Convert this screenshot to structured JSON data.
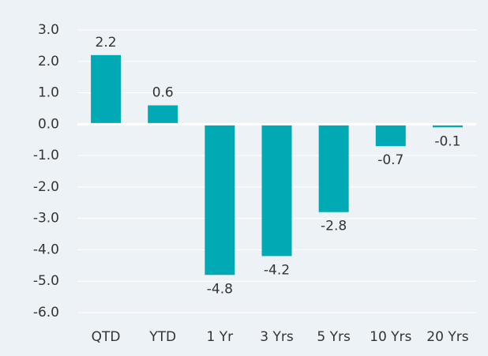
{
  "chart_data": {
    "type": "bar",
    "categories": [
      "QTD",
      "YTD",
      "1 Yr",
      "3 Yrs",
      "5 Yrs",
      "10 Yrs",
      "20 Yrs"
    ],
    "values": [
      2.2,
      0.6,
      -4.8,
      -4.2,
      -2.8,
      -0.7,
      -0.1
    ],
    "color": "#00aab5",
    "ylim": [
      -6,
      3
    ],
    "yticks": [
      {
        "value": 3,
        "label": "3.0"
      },
      {
        "value": 2,
        "label": "2.0"
      },
      {
        "value": 1,
        "label": "1.0"
      },
      {
        "value": 0,
        "label": "0.0"
      },
      {
        "value": -1,
        "label": "-1.0"
      },
      {
        "value": -2,
        "label": "-2.0"
      },
      {
        "value": -3,
        "label": "-3.0"
      },
      {
        "value": -4,
        "label": "-4.0"
      },
      {
        "value": -5,
        "label": "-5.0"
      },
      {
        "value": -6,
        "label": "-6.0"
      }
    ],
    "grid": true
  }
}
